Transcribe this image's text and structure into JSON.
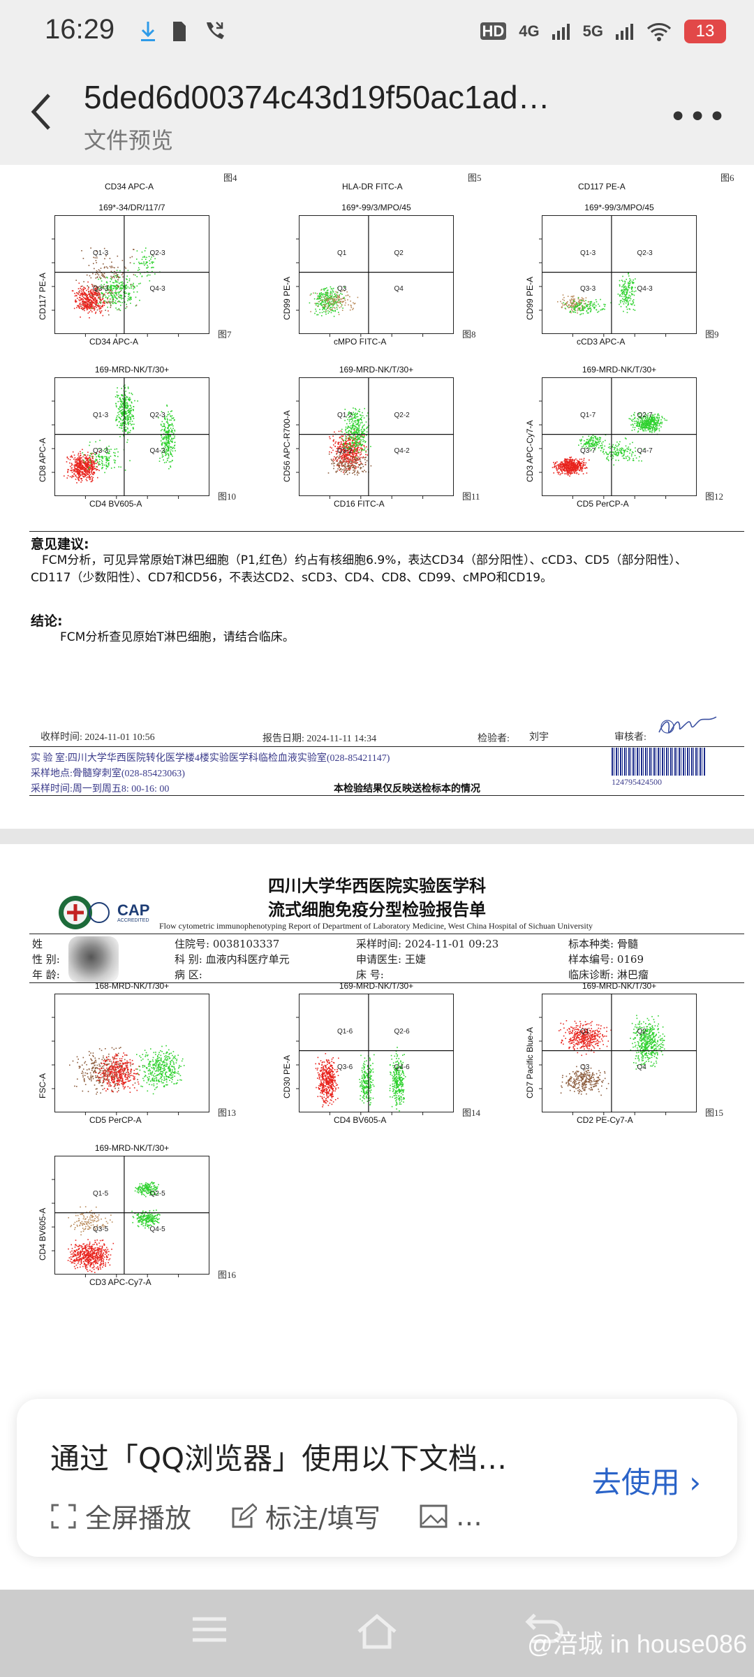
{
  "status_bar": {
    "time": "16:29",
    "network_1": "4G",
    "network_2": "5G",
    "hd": "HD",
    "battery": "13",
    "icons": [
      "download-icon",
      "sim-icon",
      "missed-call-icon",
      "wifi-icon",
      "battery-icon"
    ]
  },
  "header": {
    "title": "5ded6d00374c43d19f50ac1ad…",
    "subtitle": "文件预览",
    "more": "•••"
  },
  "page1": {
    "top_labels": [
      {
        "xlabel": "CD34 APC-A",
        "fig": "图4"
      },
      {
        "xlabel": "HLA-DR FITC-A",
        "fig": "图5"
      },
      {
        "xlabel": "CD117 PE-A",
        "fig": "图6"
      }
    ],
    "plots": [
      {
        "title": "169*-34/DR/117/7",
        "ylabel": "CD117 PE-A",
        "xlabel": "CD34 APC-A",
        "fig": "图7",
        "quads": [
          "Q1-3",
          "Q2-3",
          "Q3-3",
          "Q4-3"
        ]
      },
      {
        "title": "169*-99/3/MPO/45",
        "ylabel": "CD99 PE-A",
        "xlabel": "cMPO FITC-A",
        "fig": "图8",
        "quads": [
          "Q1",
          "Q2",
          "Q3",
          "Q4"
        ]
      },
      {
        "title": "169*-99/3/MPO/45",
        "ylabel": "CD99 PE-A",
        "xlabel": "cCD3 APC-A",
        "fig": "图9",
        "quads": [
          "Q1-3",
          "Q2-3",
          "Q3-3",
          "Q4-3"
        ]
      },
      {
        "title": "169-MRD-NK/T/30+",
        "ylabel": "CD8 APC-A",
        "xlabel": "CD4 BV605-A",
        "fig": "图10",
        "quads": [
          "Q1-3",
          "Q2-3",
          "Q3-3",
          "Q4-3"
        ]
      },
      {
        "title": "169-MRD-NK/T/30+",
        "ylabel": "CD56 APC-R700-A",
        "xlabel": "CD16 FITC-A",
        "fig": "图11",
        "quads": [
          "Q1-2",
          "Q2-2",
          "Q3-2",
          "Q4-2"
        ]
      },
      {
        "title": "169-MRD-NK/T/30+",
        "ylabel": "CD3 APC-Cy7-A",
        "xlabel": "CD5 PerCP-A",
        "fig": "图12",
        "quads": [
          "Q1-7",
          "Q2-7",
          "Q3-7",
          "Q4-7"
        ]
      }
    ],
    "opinion_heading": "意见建议:",
    "opinion_text": "FCM分析，可见异常原始T淋巴细胞（P1,红色）约占有核细胞6.9%，表达CD34（部分阳性）、cCD3、CD5（部分阳性）、CD117（少数阳性）、CD7和CD56，不表达CD2、sCD3、CD4、CD8、CD99、cMPO和CD19。",
    "conclusion_heading": "结论:",
    "conclusion_text": "FCM分析查见原始T淋巴细胞，请结合临床。",
    "footer": {
      "receive_time": "收样时间: 2024-11-01 10:56",
      "report_date": "报告日期: 2024-11-11 14:34",
      "inspector": "检验者:",
      "inspector_name": "刘宇",
      "reviewer": "审核者:",
      "lab": "实 验 室:四川大学华西医院转化医学楼4楼实验医学科临检血液实验室(028-85421147)",
      "location": "采样地点:骨髓穿刺室(028-85423063)",
      "sample_hours": "采样时间:周一到周五8: 00-16: 00",
      "disclaimer": "本检验结果仅反映送检标本的情况",
      "barcode_number": "124795424500"
    }
  },
  "page2": {
    "header_cn_1": "四川大学华西医院实验医学科",
    "header_cn_2": "流式细胞免疫分型检验报告单",
    "header_en": "Flow cytometric immunophenotyping Report of Department of Laboratory Medicine, West China Hospital of Sichuan University",
    "cap": "CAP",
    "cap_sub": "ACCREDITED",
    "info": {
      "name_label": "姓",
      "sex_label": "性  别:",
      "age_label": "年  龄:",
      "admission": "住院号: 0038103337",
      "dept": "科  别: 血液内科医疗单元",
      "ward": "病  区:",
      "sample_time": "采样时间: 2024-11-01 09:23",
      "doctor": "申请医生: 王婕",
      "bed": "床    号:",
      "specimen": "标本种类: 骨髓",
      "sample_no": "样本编号: 0169",
      "diagnosis": "临床诊断: 淋巴瘤"
    },
    "plots": [
      {
        "title": "168-MRD-NK/T/30+",
        "ylabel": "FSC-A",
        "xlabel": "CD5 PerCP-A",
        "fig": "图13",
        "quads": []
      },
      {
        "title": "169-MRD-NK/T/30+",
        "ylabel": "CD30 PE-A",
        "xlabel": "CD4 BV605-A",
        "fig": "图14",
        "quads": [
          "Q1-6",
          "Q2-6",
          "Q3-6",
          "Q4-6"
        ]
      },
      {
        "title": "169-MRD-NK/T/30+",
        "ylabel": "CD7 Pacific Blue-A",
        "xlabel": "CD2 PE-Cy7-A",
        "fig": "图15",
        "quads": [
          "Q1",
          "Q2",
          "Q3",
          "Q4"
        ]
      },
      {
        "title": "169-MRD-NK/T/30+",
        "ylabel": "CD4 BV605-A",
        "xlabel": "CD3 APC-Cy7-A",
        "fig": "图16",
        "quads": [
          "Q1-5",
          "Q2-5",
          "Q3-5",
          "Q4-5"
        ]
      }
    ]
  },
  "banner": {
    "text": "通过「QQ浏览器」使用以下文档…",
    "action": "去使用",
    "items": [
      "全屏播放",
      "标注/填写",
      "…"
    ]
  },
  "watermark": "@涪城 in house086",
  "colors": {
    "population_red": "#e8231d",
    "population_green": "#2ed12e",
    "link_blue": "#2a63c8"
  }
}
